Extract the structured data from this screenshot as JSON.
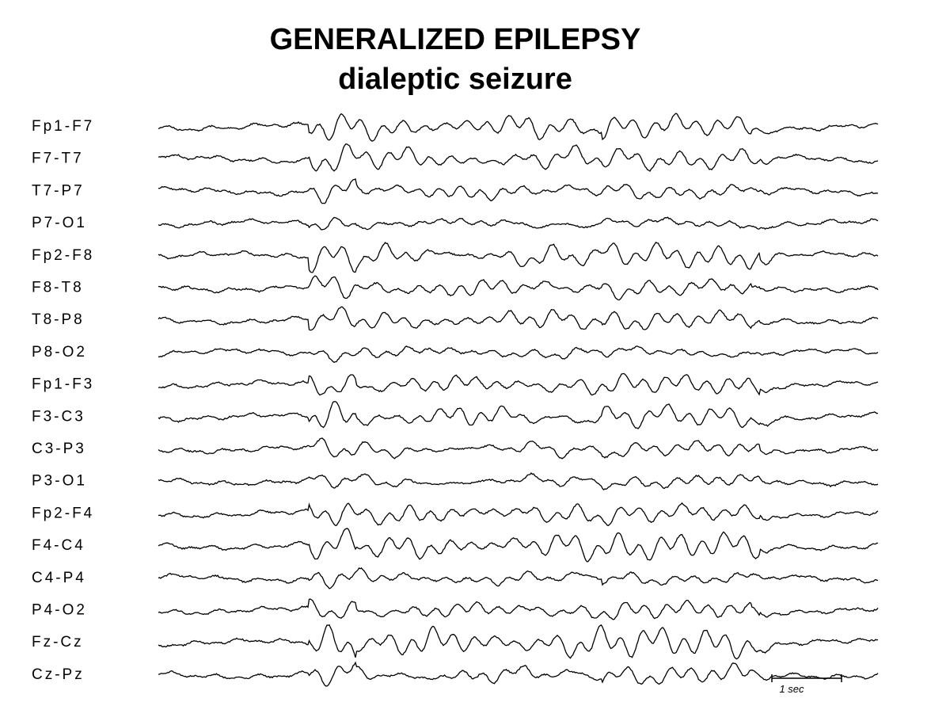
{
  "header": {
    "title": "GENERALIZED EPILEPSY",
    "subtitle": "dialeptic seizure"
  },
  "channels": [
    "Fp1-F7",
    "F7-T7",
    "T7-P7",
    "P7-O1",
    "Fp2-F8",
    "F8-T8",
    "T8-P8",
    "P8-O2",
    "Fp1-F3",
    "F3-C3",
    "C3-P3",
    "P3-O1",
    "Fp2-F4",
    "F4-C4",
    "C4-P4",
    "P4-O2",
    "Fz-Cz",
    "Cz-Pz"
  ],
  "scale": {
    "label": "1 sec"
  }
}
